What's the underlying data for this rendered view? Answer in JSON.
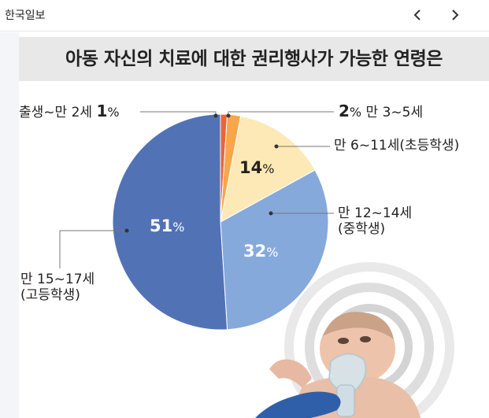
{
  "app": {
    "brand": "한국일보"
  },
  "nav": {
    "prev_icon": "chevron-left-icon",
    "next_icon": "chevron-right-icon"
  },
  "infographic": {
    "title": "아동 자신의 치료에 대한 권리행사가 가능한 연령은",
    "photo": "baby-with-nebulizer-mask"
  },
  "chart_data": {
    "type": "pie",
    "title": "아동 자신의 치료에 대한 권리행사가 가능한 연령은",
    "slices": [
      {
        "label": "출생~만 2세",
        "value": 1,
        "color": "#e8643a"
      },
      {
        "label": "만 3~5세",
        "value": 2,
        "color": "#f7a64a"
      },
      {
        "label": "만 6~11세(초등학생)",
        "value": 14,
        "color": "#fde9b6"
      },
      {
        "label": "만 12~14세(중학생)",
        "value": 32,
        "color": "#86a9dc"
      },
      {
        "label": "만 15~17세(고등학생)",
        "value": 51,
        "color": "#5272b6"
      }
    ],
    "labels": {
      "s0_text": "출생~만 2세",
      "s0_num": "1",
      "s1_num": "2",
      "s1_text": "만 3~5세",
      "s2_line1": "만 6~11세(초등학생)",
      "s2_num": "14",
      "s3_line1": "만 12~14세",
      "s3_line2": "(중학생)",
      "s3_num": "32",
      "s4_line1": "만 15~17세",
      "s4_line2": "(고등학생)",
      "s4_num": "51",
      "pct_sign": "%"
    }
  }
}
